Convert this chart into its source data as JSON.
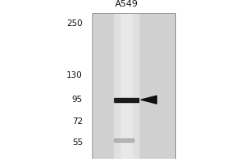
{
  "title": "A549",
  "mw_markers": [
    250,
    130,
    95,
    72,
    55
  ],
  "band_mw": 95,
  "faint_band_mw": 57,
  "background_color": "#ffffff",
  "panel_bg_color": "#d0d0d0",
  "lane_bg_color": "#c8c8c8",
  "lane_highlight_color": "#e0e0e0",
  "band_color": "#1a1a1a",
  "faint_band_color": "#909090",
  "arrow_color": "#111111",
  "marker_label_color": "#111111",
  "title_color": "#111111",
  "title_fontsize": 8,
  "marker_fontsize": 7.5
}
